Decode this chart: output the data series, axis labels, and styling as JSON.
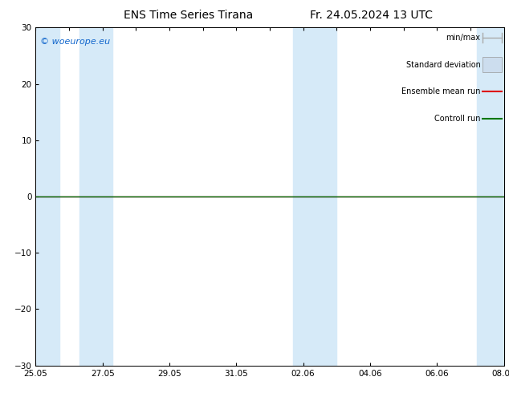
{
  "title": "ENS Time Series Tirana",
  "title2": "Fr. 24.05.2024 13 UTC",
  "watermark": "© woeurope.eu",
  "watermark_color": "#1166cc",
  "ylim": [
    -30,
    30
  ],
  "yticks": [
    -30,
    -20,
    -10,
    0,
    10,
    20,
    30
  ],
  "xlabel_dates": [
    "25.05",
    "27.05",
    "29.05",
    "31.05",
    "02.06",
    "04.06",
    "06.06",
    "08.06"
  ],
  "x_tick_positions": [
    0,
    2,
    4,
    6,
    8,
    10,
    12,
    14
  ],
  "x_min": 0,
  "x_max": 14,
  "blue_bands": [
    [
      0.0,
      0.7
    ],
    [
      1.3,
      2.3
    ],
    [
      7.7,
      9.0
    ],
    [
      13.2,
      14.0
    ]
  ],
  "band_color": "#d6eaf8",
  "background_color": "#ffffff",
  "zero_line_color": "#000000",
  "legend_minmax_color": "#aaaaaa",
  "legend_std_color": "#ccddee",
  "legend_mean_color": "#dd0000",
  "legend_control_color": "#007700",
  "title_fontsize": 10,
  "tick_fontsize": 7.5,
  "watermark_fontsize": 8,
  "legend_fontsize": 7
}
